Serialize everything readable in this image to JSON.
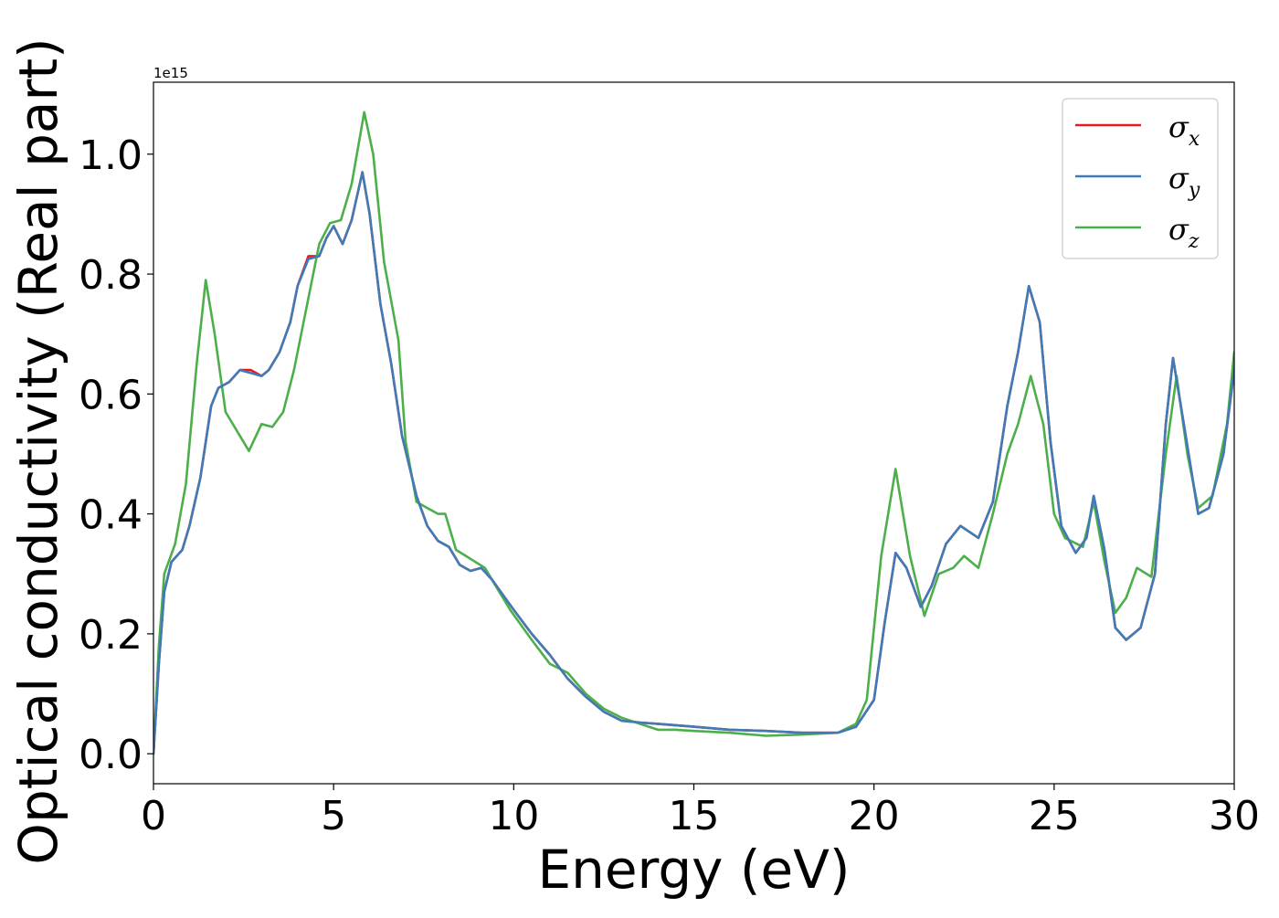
{
  "chart_data": {
    "type": "line",
    "xlabel": "Energy (eV)",
    "ylabel": "Optical conductivity (Real part)",
    "offset_text": "1e15",
    "xlim": [
      0,
      30
    ],
    "ylim": [
      -0.05,
      1.12
    ],
    "xticks": [
      0,
      5,
      10,
      15,
      20,
      25,
      30
    ],
    "xtick_labels": [
      "0",
      "5",
      "10",
      "15",
      "20",
      "25",
      "30"
    ],
    "yticks": [
      0.0,
      0.2,
      0.4,
      0.6,
      0.8,
      1.0
    ],
    "ytick_labels": [
      "0.0",
      "0.2",
      "0.4",
      "0.6",
      "0.8",
      "1.0"
    ],
    "grid": false,
    "legend_position": "top-right",
    "series": [
      {
        "name": "σx",
        "legend_base": "σ",
        "legend_sub": "x",
        "color": "#e41a1c",
        "points": [
          [
            0,
            0.0
          ],
          [
            0.15,
            0.15
          ],
          [
            0.3,
            0.27
          ],
          [
            0.5,
            0.32
          ],
          [
            0.8,
            0.34
          ],
          [
            1.0,
            0.38
          ],
          [
            1.3,
            0.46
          ],
          [
            1.6,
            0.58
          ],
          [
            1.8,
            0.61
          ],
          [
            2.1,
            0.62
          ],
          [
            2.4,
            0.64
          ],
          [
            2.7,
            0.64
          ],
          [
            3.0,
            0.63
          ],
          [
            3.2,
            0.64
          ],
          [
            3.5,
            0.67
          ],
          [
            3.8,
            0.72
          ],
          [
            4.0,
            0.78
          ],
          [
            4.3,
            0.83
          ],
          [
            4.6,
            0.83
          ],
          [
            4.8,
            0.86
          ],
          [
            5.0,
            0.88
          ],
          [
            5.25,
            0.85
          ],
          [
            5.5,
            0.89
          ],
          [
            5.8,
            0.97
          ],
          [
            6.0,
            0.9
          ],
          [
            6.3,
            0.75
          ],
          [
            6.6,
            0.65
          ],
          [
            6.9,
            0.53
          ],
          [
            7.3,
            0.43
          ],
          [
            7.6,
            0.38
          ],
          [
            7.9,
            0.355
          ],
          [
            8.2,
            0.345
          ],
          [
            8.5,
            0.315
          ],
          [
            8.8,
            0.305
          ],
          [
            9.1,
            0.31
          ],
          [
            9.4,
            0.29
          ],
          [
            9.7,
            0.265
          ],
          [
            10.0,
            0.24
          ],
          [
            10.5,
            0.2
          ],
          [
            11.0,
            0.165
          ],
          [
            11.5,
            0.125
          ],
          [
            12.0,
            0.095
          ],
          [
            12.5,
            0.07
          ],
          [
            13.0,
            0.055
          ],
          [
            13.5,
            0.052
          ],
          [
            14.0,
            0.05
          ],
          [
            15.0,
            0.045
          ],
          [
            16.0,
            0.04
          ],
          [
            17.0,
            0.038
          ],
          [
            18.0,
            0.035
          ],
          [
            19.0,
            0.035
          ],
          [
            19.5,
            0.045
          ],
          [
            20.0,
            0.09
          ],
          [
            20.3,
            0.22
          ],
          [
            20.6,
            0.335
          ],
          [
            20.9,
            0.31
          ],
          [
            21.3,
            0.245
          ],
          [
            21.6,
            0.28
          ],
          [
            22.0,
            0.35
          ],
          [
            22.4,
            0.38
          ],
          [
            22.9,
            0.36
          ],
          [
            23.3,
            0.42
          ],
          [
            23.7,
            0.58
          ],
          [
            24.0,
            0.67
          ],
          [
            24.3,
            0.78
          ],
          [
            24.6,
            0.72
          ],
          [
            24.9,
            0.52
          ],
          [
            25.2,
            0.38
          ],
          [
            25.6,
            0.335
          ],
          [
            25.9,
            0.36
          ],
          [
            26.1,
            0.43
          ],
          [
            26.4,
            0.34
          ],
          [
            26.7,
            0.21
          ],
          [
            27.0,
            0.19
          ],
          [
            27.4,
            0.21
          ],
          [
            27.8,
            0.3
          ],
          [
            28.1,
            0.55
          ],
          [
            28.3,
            0.66
          ],
          [
            28.6,
            0.55
          ],
          [
            29.0,
            0.4
          ],
          [
            29.3,
            0.41
          ],
          [
            29.7,
            0.5
          ],
          [
            30.0,
            0.64
          ]
        ]
      },
      {
        "name": "σy",
        "legend_base": "σ",
        "legend_sub": "y",
        "color": "#3f7bb7",
        "points": [
          [
            0,
            0.0
          ],
          [
            0.15,
            0.15
          ],
          [
            0.3,
            0.27
          ],
          [
            0.5,
            0.32
          ],
          [
            0.8,
            0.34
          ],
          [
            1.0,
            0.38
          ],
          [
            1.3,
            0.46
          ],
          [
            1.6,
            0.58
          ],
          [
            1.8,
            0.61
          ],
          [
            2.1,
            0.62
          ],
          [
            2.4,
            0.64
          ],
          [
            2.7,
            0.635
          ],
          [
            3.0,
            0.63
          ],
          [
            3.2,
            0.64
          ],
          [
            3.5,
            0.67
          ],
          [
            3.8,
            0.72
          ],
          [
            4.0,
            0.78
          ],
          [
            4.3,
            0.825
          ],
          [
            4.6,
            0.83
          ],
          [
            4.8,
            0.86
          ],
          [
            5.0,
            0.88
          ],
          [
            5.25,
            0.85
          ],
          [
            5.5,
            0.89
          ],
          [
            5.8,
            0.97
          ],
          [
            6.0,
            0.9
          ],
          [
            6.3,
            0.75
          ],
          [
            6.6,
            0.65
          ],
          [
            6.9,
            0.53
          ],
          [
            7.3,
            0.43
          ],
          [
            7.6,
            0.38
          ],
          [
            7.9,
            0.355
          ],
          [
            8.2,
            0.345
          ],
          [
            8.5,
            0.315
          ],
          [
            8.8,
            0.305
          ],
          [
            9.1,
            0.31
          ],
          [
            9.4,
            0.29
          ],
          [
            9.7,
            0.265
          ],
          [
            10.0,
            0.24
          ],
          [
            10.5,
            0.2
          ],
          [
            11.0,
            0.165
          ],
          [
            11.5,
            0.125
          ],
          [
            12.0,
            0.095
          ],
          [
            12.5,
            0.07
          ],
          [
            13.0,
            0.055
          ],
          [
            13.5,
            0.052
          ],
          [
            14.0,
            0.05
          ],
          [
            15.0,
            0.045
          ],
          [
            16.0,
            0.04
          ],
          [
            17.0,
            0.038
          ],
          [
            18.0,
            0.035
          ],
          [
            19.0,
            0.035
          ],
          [
            19.5,
            0.045
          ],
          [
            20.0,
            0.09
          ],
          [
            20.3,
            0.22
          ],
          [
            20.6,
            0.335
          ],
          [
            20.9,
            0.31
          ],
          [
            21.3,
            0.245
          ],
          [
            21.6,
            0.28
          ],
          [
            22.0,
            0.35
          ],
          [
            22.4,
            0.38
          ],
          [
            22.9,
            0.36
          ],
          [
            23.3,
            0.42
          ],
          [
            23.7,
            0.58
          ],
          [
            24.0,
            0.67
          ],
          [
            24.3,
            0.78
          ],
          [
            24.6,
            0.72
          ],
          [
            24.9,
            0.52
          ],
          [
            25.2,
            0.38
          ],
          [
            25.6,
            0.335
          ],
          [
            25.9,
            0.36
          ],
          [
            26.1,
            0.43
          ],
          [
            26.4,
            0.34
          ],
          [
            26.7,
            0.21
          ],
          [
            27.0,
            0.19
          ],
          [
            27.4,
            0.21
          ],
          [
            27.8,
            0.3
          ],
          [
            28.1,
            0.55
          ],
          [
            28.3,
            0.66
          ],
          [
            28.6,
            0.55
          ],
          [
            29.0,
            0.4
          ],
          [
            29.3,
            0.41
          ],
          [
            29.7,
            0.5
          ],
          [
            30.0,
            0.64
          ]
        ]
      },
      {
        "name": "σz",
        "legend_base": "σ",
        "legend_sub": "z",
        "color": "#4daf4a",
        "points": [
          [
            0,
            0.0
          ],
          [
            0.15,
            0.18
          ],
          [
            0.3,
            0.3
          ],
          [
            0.6,
            0.35
          ],
          [
            0.9,
            0.45
          ],
          [
            1.2,
            0.65
          ],
          [
            1.45,
            0.79
          ],
          [
            1.7,
            0.7
          ],
          [
            2.0,
            0.57
          ],
          [
            2.3,
            0.54
          ],
          [
            2.65,
            0.505
          ],
          [
            3.0,
            0.55
          ],
          [
            3.3,
            0.545
          ],
          [
            3.6,
            0.57
          ],
          [
            3.9,
            0.64
          ],
          [
            4.3,
            0.76
          ],
          [
            4.6,
            0.85
          ],
          [
            4.9,
            0.885
          ],
          [
            5.2,
            0.89
          ],
          [
            5.5,
            0.95
          ],
          [
            5.85,
            1.07
          ],
          [
            6.1,
            1.0
          ],
          [
            6.4,
            0.82
          ],
          [
            6.8,
            0.69
          ],
          [
            7.0,
            0.52
          ],
          [
            7.3,
            0.42
          ],
          [
            7.6,
            0.41
          ],
          [
            7.9,
            0.4
          ],
          [
            8.1,
            0.4
          ],
          [
            8.4,
            0.34
          ],
          [
            8.8,
            0.325
          ],
          [
            9.2,
            0.31
          ],
          [
            9.5,
            0.28
          ],
          [
            9.9,
            0.24
          ],
          [
            10.5,
            0.19
          ],
          [
            11.0,
            0.15
          ],
          [
            11.5,
            0.135
          ],
          [
            12.0,
            0.1
          ],
          [
            12.5,
            0.075
          ],
          [
            13.0,
            0.06
          ],
          [
            13.5,
            0.05
          ],
          [
            14.0,
            0.04
          ],
          [
            14.5,
            0.04
          ],
          [
            15.0,
            0.038
          ],
          [
            16.0,
            0.035
          ],
          [
            17.0,
            0.03
          ],
          [
            18.0,
            0.032
          ],
          [
            19.0,
            0.035
          ],
          [
            19.5,
            0.05
          ],
          [
            19.8,
            0.09
          ],
          [
            20.2,
            0.33
          ],
          [
            20.6,
            0.475
          ],
          [
            21.0,
            0.33
          ],
          [
            21.4,
            0.23
          ],
          [
            21.8,
            0.3
          ],
          [
            22.2,
            0.31
          ],
          [
            22.5,
            0.33
          ],
          [
            22.9,
            0.31
          ],
          [
            23.3,
            0.4
          ],
          [
            23.7,
            0.5
          ],
          [
            24.0,
            0.55
          ],
          [
            24.35,
            0.63
          ],
          [
            24.7,
            0.55
          ],
          [
            25.0,
            0.4
          ],
          [
            25.3,
            0.36
          ],
          [
            25.8,
            0.345
          ],
          [
            26.1,
            0.42
          ],
          [
            26.4,
            0.32
          ],
          [
            26.7,
            0.235
          ],
          [
            27.0,
            0.26
          ],
          [
            27.3,
            0.31
          ],
          [
            27.7,
            0.295
          ],
          [
            28.1,
            0.5
          ],
          [
            28.4,
            0.63
          ],
          [
            28.7,
            0.5
          ],
          [
            29.0,
            0.41
          ],
          [
            29.4,
            0.43
          ],
          [
            29.8,
            0.55
          ],
          [
            30.0,
            0.67
          ]
        ]
      }
    ]
  }
}
